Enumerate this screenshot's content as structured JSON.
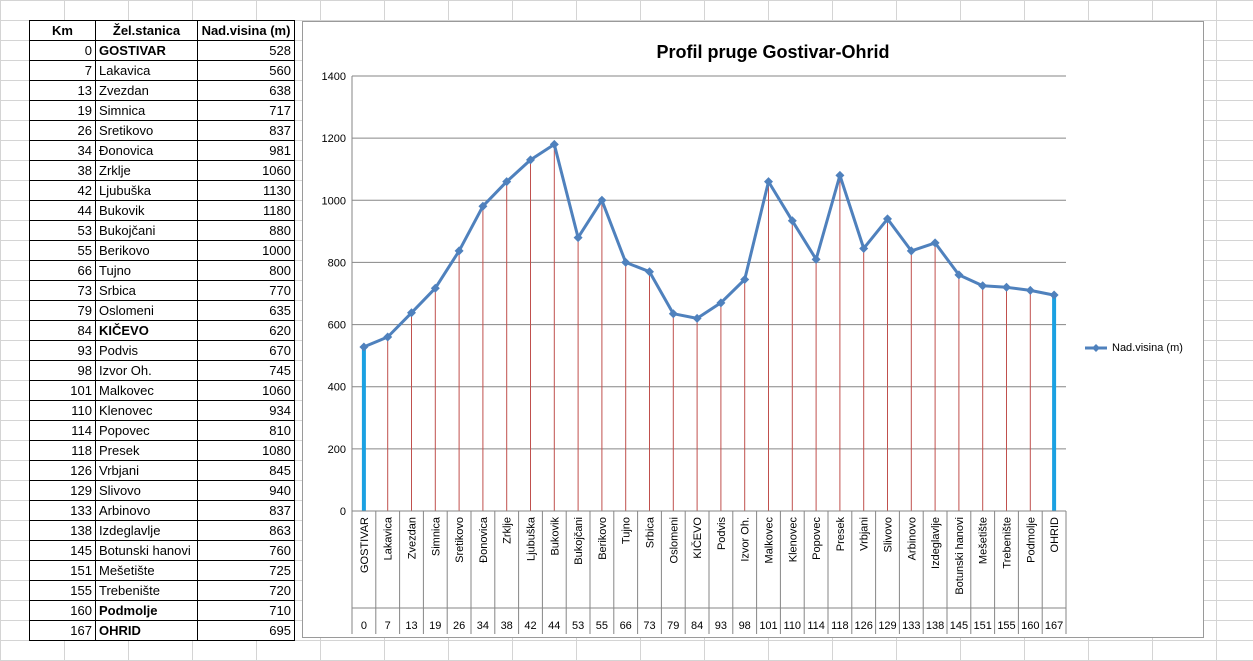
{
  "table": {
    "headers": {
      "km": "Km",
      "station": "Žel.stanica",
      "elev": "Nad.visina (m)"
    },
    "rows": [
      {
        "km": "0",
        "station": "GOSTIVAR",
        "elev": "528",
        "bold": true
      },
      {
        "km": "7",
        "station": "Lakavica",
        "elev": "560"
      },
      {
        "km": "13",
        "station": "Zvezdan",
        "elev": "638"
      },
      {
        "km": "19",
        "station": "Simnica",
        "elev": "717"
      },
      {
        "km": "26",
        "station": "Sretikovo",
        "elev": "837"
      },
      {
        "km": "34",
        "station": "Đonovica",
        "elev": "981"
      },
      {
        "km": "38",
        "station": "Zrklje",
        "elev": "1060"
      },
      {
        "km": "42",
        "station": "Ljubuška",
        "elev": "1130"
      },
      {
        "km": "44",
        "station": "Bukovik",
        "elev": "1180"
      },
      {
        "km": "53",
        "station": "Bukojčani",
        "elev": "880"
      },
      {
        "km": "55",
        "station": "Berikovo",
        "elev": "1000"
      },
      {
        "km": "66",
        "station": "Tujno",
        "elev": "800"
      },
      {
        "km": "73",
        "station": "Srbica",
        "elev": "770"
      },
      {
        "km": "79",
        "station": "Oslomeni",
        "elev": "635"
      },
      {
        "km": "84",
        "station": "KIČEVO",
        "elev": "620",
        "bold": true
      },
      {
        "km": "93",
        "station": "Podvis",
        "elev": "670"
      },
      {
        "km": "98",
        "station": "Izvor Oh.",
        "elev": "745"
      },
      {
        "km": "101",
        "station": "Malkovec",
        "elev": "1060"
      },
      {
        "km": "110",
        "station": "Klenovec",
        "elev": "934"
      },
      {
        "km": "114",
        "station": "Popovec",
        "elev": "810"
      },
      {
        "km": "118",
        "station": "Presek",
        "elev": "1080"
      },
      {
        "km": "126",
        "station": "Vrbjani",
        "elev": "845"
      },
      {
        "km": "129",
        "station": "Slivovo",
        "elev": "940"
      },
      {
        "km": "133",
        "station": "Arbinovo",
        "elev": "837"
      },
      {
        "km": "138",
        "station": "Izdeglavlje",
        "elev": "863"
      },
      {
        "km": "145",
        "station": "Botunski hanovi",
        "elev": "760"
      },
      {
        "km": "151",
        "station": "Mešetište",
        "elev": "725"
      },
      {
        "km": "155",
        "station": "Trebenište",
        "elev": "720"
      },
      {
        "km": "160",
        "station": "Podmolje",
        "elev": "710",
        "bold": true
      },
      {
        "km": "167",
        "station": "OHRID",
        "elev": "695",
        "bold": true
      }
    ]
  },
  "chart_data": {
    "type": "line",
    "title": "Profil pruge Gostivar-Ohrid",
    "categories": [
      "GOSTIVAR",
      "Lakavica",
      "Zvezdan",
      "Simnica",
      "Sretikovo",
      "Đonovica",
      "Zrklje",
      "Ljubuška",
      "Bukovik",
      "Bukojčani",
      "Berikovo",
      "Tujno",
      "Srbica",
      "Oslomeni",
      "KIČEVO",
      "Podvis",
      "Izvor Oh.",
      "Malkovec",
      "Klenovec",
      "Popovec",
      "Presek",
      "Vrbjani",
      "Slivovo",
      "Arbinovo",
      "Izdeglavlje",
      "Botunski hanovi",
      "Mešetište",
      "Trebenište",
      "Podmolje",
      "OHRID"
    ],
    "km_labels": [
      "0",
      "7",
      "13",
      "19",
      "26",
      "34",
      "38",
      "42",
      "44",
      "53",
      "55",
      "66",
      "73",
      "79",
      "84",
      "93",
      "98",
      "101",
      "110",
      "114",
      "118",
      "126",
      "129",
      "133",
      "138",
      "145",
      "151",
      "155",
      "160",
      "167"
    ],
    "series": [
      {
        "name": "Nad.visina (m)",
        "values": [
          528,
          560,
          638,
          717,
          837,
          981,
          1060,
          1130,
          1180,
          880,
          1000,
          800,
          770,
          635,
          620,
          670,
          745,
          1060,
          934,
          810,
          1080,
          845,
          940,
          837,
          863,
          760,
          725,
          720,
          710,
          695
        ]
      }
    ],
    "ylim": [
      0,
      1400
    ],
    "yticks": [
      "0",
      "200",
      "400",
      "600",
      "800",
      "1000",
      "1200",
      "1400"
    ],
    "grid": true,
    "legend": "right",
    "colors": {
      "line": "#4f81bd",
      "drop": "#c0504d",
      "edge": "#1ba1e2",
      "grid": "#868686"
    }
  }
}
